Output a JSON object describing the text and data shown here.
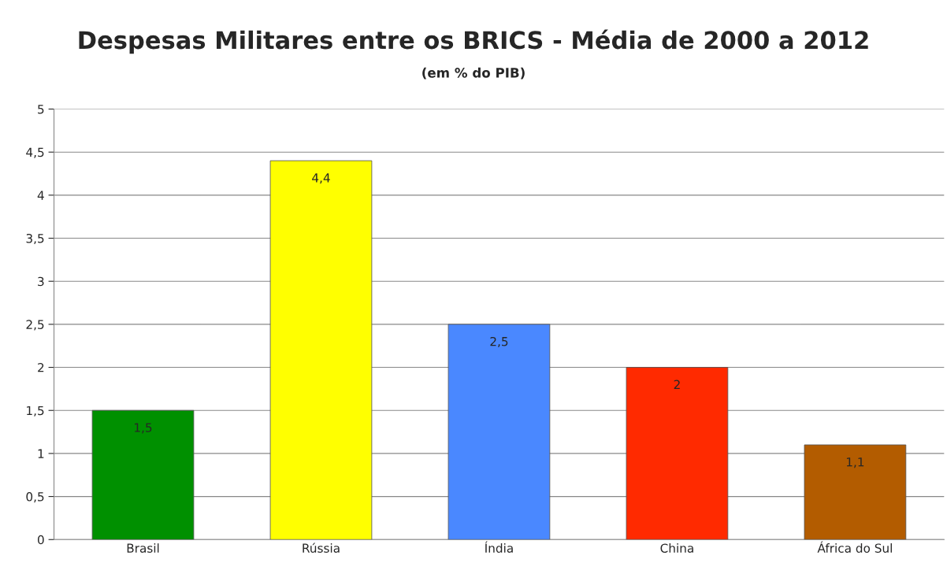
{
  "chart_data": {
    "type": "bar",
    "title": "Despesas Militares entre os BRICS - Média de 2000 a 2012",
    "subtitle": "(em % do PIB)",
    "categories": [
      "Brasil",
      "Rússia",
      "Índia",
      "China",
      "África do Sul"
    ],
    "values": [
      1.5,
      4.4,
      2.5,
      2,
      1.1
    ],
    "colors": [
      "#009000",
      "#ffff00",
      "#4a88ff",
      "#ff2a00",
      "#b35c00"
    ],
    "value_labels": [
      "1,5",
      "4,4",
      "2,5",
      "2",
      "1,1"
    ],
    "ylim": [
      0,
      5
    ],
    "yticks": [
      0,
      {
        "value": 0.5,
        "label": "0,5"
      },
      1,
      {
        "value": 1.5,
        "label": "1,5"
      },
      2,
      {
        "value": 2.5,
        "label": "2,5"
      },
      3,
      {
        "value": 3.5,
        "label": "3,5"
      },
      4,
      {
        "value": 4.5,
        "label": "4,5"
      },
      5
    ],
    "grid": "y",
    "legend": false
  }
}
